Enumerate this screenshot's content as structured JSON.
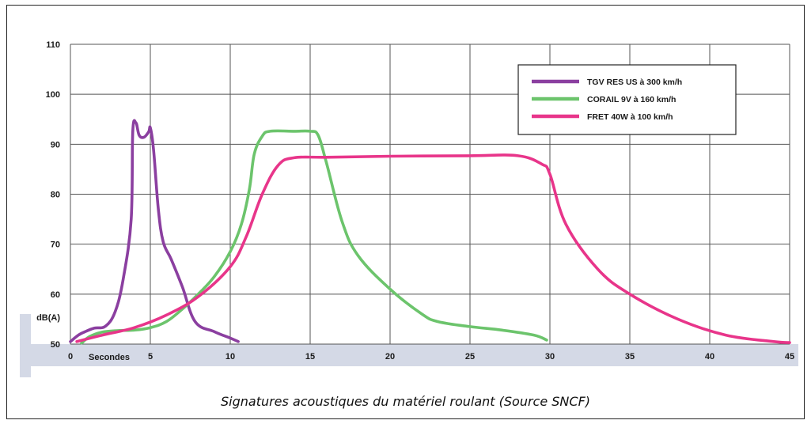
{
  "caption": "Signatures acoustiques du matériel roulant (Source SNCF)",
  "chart_data": {
    "type": "line",
    "ylabel": "dB(A)",
    "xlabel": "Secondes",
    "xlim": [
      0,
      45
    ],
    "ylim": [
      50,
      110
    ],
    "x_ticks": [
      "0",
      "5",
      "10",
      "15",
      "20",
      "25",
      "30",
      "35",
      "40",
      "45"
    ],
    "y_ticks": [
      "50",
      "60",
      "70",
      "80",
      "90",
      "100",
      "110"
    ],
    "grid": true,
    "legend_position": "top-right",
    "colors": {
      "grid": "#555555",
      "axis_band": "#d4d9e6"
    },
    "series": [
      {
        "name": "TGV RES US à 300 km/h",
        "color": "#8b3fa0",
        "x": [
          0,
          0.5,
          1,
          1.5,
          2.2,
          2.8,
          3.3,
          3.8,
          3.9,
          4.1,
          4.3,
          4.6,
          4.9,
          5.0,
          5.2,
          5.5,
          5.8,
          6.3,
          7.0,
          7.8,
          9.0,
          10.0,
          10.5
        ],
        "y": [
          50.5,
          51.8,
          52.6,
          53.2,
          53.6,
          56.5,
          63,
          75,
          92.5,
          94.3,
          91.8,
          91.4,
          92.5,
          93.3,
          89,
          77,
          70.5,
          67,
          61.5,
          54.5,
          52.5,
          51.2,
          50.5
        ]
      },
      {
        "name": "CORAIL 9V à 160 km/h",
        "color": "#6cc46c",
        "x": [
          0.7,
          1.2,
          2,
          3,
          4,
          5,
          6,
          7,
          8,
          9,
          10,
          10.7,
          11.2,
          11.5,
          12,
          12.5,
          14,
          15,
          15.5,
          16,
          17,
          18,
          20,
          22,
          23,
          25,
          27,
          29,
          29.8
        ],
        "y": [
          50.2,
          51.5,
          52.4,
          52.7,
          52.8,
          53.3,
          54.5,
          57,
          60,
          63.5,
          68.5,
          74,
          81,
          88,
          91.6,
          92.6,
          92.6,
          92.6,
          91.8,
          86.5,
          74.5,
          67.7,
          61,
          56,
          54.5,
          53.5,
          52.8,
          51.8,
          50.8
        ]
      },
      {
        "name": "FRET 40W à 100 km/h",
        "color": "#e8358a",
        "x": [
          0.4,
          2,
          4,
          6,
          8,
          10,
          11,
          12,
          13,
          14,
          16,
          20,
          25,
          28,
          29.5,
          30,
          31,
          33,
          35,
          38,
          41,
          44,
          45
        ],
        "y": [
          50.5,
          51.8,
          53.3,
          55.8,
          59.5,
          65.5,
          71.5,
          80,
          85.8,
          87.3,
          87.4,
          87.6,
          87.7,
          87.7,
          86,
          84,
          74,
          65,
          60,
          55,
          51.8,
          50.5,
          50.3
        ]
      }
    ]
  }
}
